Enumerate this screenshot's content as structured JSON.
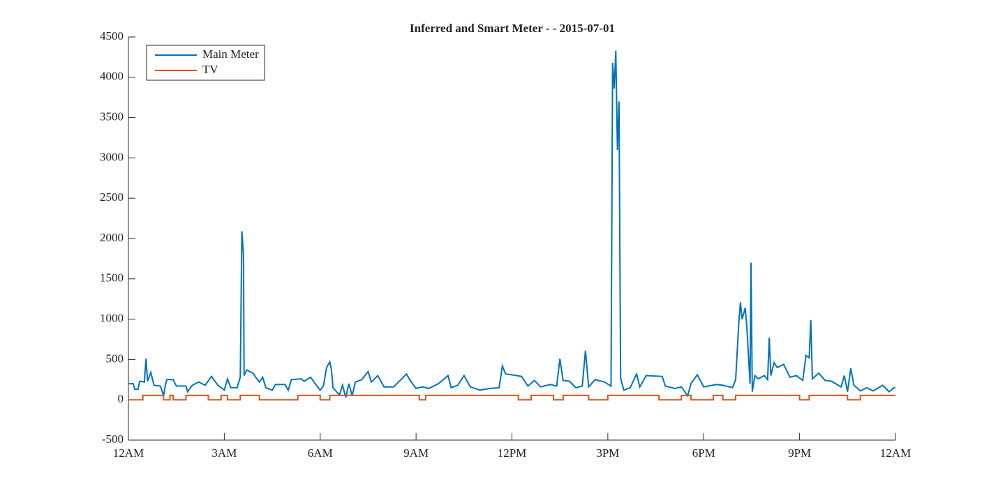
{
  "chart_data": {
    "type": "line",
    "title": "Inferred and Smart Meter -  - 2015-07-01",
    "series": [
      {
        "name": "Main Meter",
        "color": "#0072bd",
        "x": [
          0,
          0.15,
          0.2,
          0.3,
          0.35,
          0.5,
          0.55,
          0.6,
          0.7,
          0.8,
          1.0,
          1.1,
          1.15,
          1.2,
          1.4,
          1.5,
          1.8,
          1.85,
          2.0,
          2.2,
          2.4,
          2.6,
          2.8,
          3.0,
          3.1,
          3.2,
          3.4,
          3.5,
          3.55,
          3.6,
          3.62,
          3.7,
          3.9,
          4.0,
          4.1,
          4.2,
          4.3,
          4.5,
          4.6,
          4.9,
          5.0,
          5.1,
          5.4,
          5.5,
          5.7,
          5.9,
          6.0,
          6.1,
          6.2,
          6.3,
          6.35,
          6.4,
          6.6,
          6.7,
          6.8,
          6.9,
          7.0,
          7.1,
          7.3,
          7.5,
          7.6,
          7.8,
          8.0,
          8.3,
          8.4,
          8.7,
          8.8,
          9.0,
          9.2,
          9.4,
          9.7,
          10.0,
          10.1,
          10.3,
          10.5,
          10.7,
          11.0,
          11.3,
          11.6,
          11.7,
          11.8,
          12.0,
          12.3,
          12.5,
          12.7,
          12.9,
          13.2,
          13.4,
          13.5,
          13.6,
          13.8,
          14.0,
          14.2,
          14.3,
          14.4,
          14.6,
          14.9,
          15.1,
          15.15,
          15.2,
          15.25,
          15.3,
          15.35,
          15.4,
          15.5,
          15.7,
          15.9,
          16.0,
          16.2,
          16.7,
          16.8,
          17.1,
          17.3,
          17.5,
          17.6,
          17.8,
          18.0,
          18.4,
          18.6,
          18.9,
          19.0,
          19.1,
          19.15,
          19.2,
          19.3,
          19.35,
          19.45,
          19.48,
          19.52,
          19.6,
          19.7,
          19.9,
          20.0,
          20.05,
          20.1,
          20.2,
          20.3,
          20.5,
          20.7,
          20.9,
          21.1,
          21.2,
          21.3,
          21.35,
          21.4,
          21.6,
          21.8,
          22.0,
          22.3,
          22.4,
          22.5,
          22.6,
          22.7,
          22.9,
          23.1,
          23.3,
          23.6,
          23.8,
          23.95,
          24
        ],
        "values": [
          200,
          200,
          130,
          130,
          230,
          220,
          510,
          230,
          340,
          180,
          170,
          50,
          170,
          250,
          250,
          170,
          170,
          100,
          180,
          220,
          180,
          290,
          180,
          120,
          260,
          150,
          150,
          280,
          2090,
          1800,
          300,
          370,
          330,
          270,
          220,
          280,
          150,
          120,
          190,
          190,
          120,
          250,
          260,
          230,
          280,
          170,
          120,
          170,
          400,
          470,
          380,
          150,
          60,
          180,
          30,
          200,
          50,
          220,
          250,
          350,
          220,
          300,
          160,
          160,
          200,
          320,
          250,
          140,
          160,
          140,
          200,
          300,
          150,
          180,
          300,
          160,
          120,
          140,
          150,
          420,
          320,
          310,
          290,
          170,
          240,
          160,
          190,
          170,
          510,
          240,
          230,
          150,
          170,
          610,
          160,
          250,
          220,
          170,
          4180,
          3860,
          4330,
          3100,
          3700,
          270,
          120,
          150,
          320,
          160,
          300,
          290,
          170,
          140,
          160,
          50,
          200,
          310,
          160,
          190,
          180,
          150,
          250,
          970,
          1210,
          1000,
          1140,
          900,
          200,
          1700,
          100,
          300,
          260,
          300,
          250,
          770,
          300,
          460,
          400,
          440,
          280,
          300,
          240,
          550,
          520,
          990,
          260,
          330,
          240,
          230,
          160,
          300,
          100,
          390,
          180,
          110,
          150,
          110,
          180,
          100,
          150,
          150
        ]
      },
      {
        "name": "TV",
        "color": "#d95319",
        "x": [
          0,
          0.45,
          0.45,
          1.1,
          1.1,
          1.3,
          1.3,
          1.4,
          1.4,
          1.8,
          1.8,
          2.5,
          2.5,
          2.9,
          2.9,
          3.1,
          3.1,
          3.5,
          3.5,
          4.1,
          4.1,
          5.3,
          5.3,
          6.0,
          6.0,
          6.3,
          6.3,
          9.1,
          9.1,
          9.3,
          9.3,
          12.2,
          12.2,
          12.6,
          12.6,
          13.3,
          13.3,
          13.6,
          13.6,
          14.4,
          14.4,
          15.0,
          15.0,
          16.6,
          16.6,
          17.3,
          17.3,
          17.6,
          17.6,
          18.3,
          18.3,
          18.6,
          18.6,
          19.0,
          19.0,
          21.0,
          21.0,
          21.3,
          21.3,
          22.5,
          22.5,
          22.9,
          22.9,
          24
        ],
        "values": [
          0,
          0,
          55,
          55,
          0,
          0,
          55,
          55,
          0,
          0,
          55,
          55,
          0,
          0,
          55,
          55,
          0,
          0,
          55,
          55,
          0,
          0,
          55,
          55,
          0,
          0,
          55,
          55,
          0,
          0,
          55,
          55,
          0,
          0,
          55,
          55,
          0,
          0,
          55,
          55,
          0,
          0,
          55,
          55,
          0,
          0,
          55,
          55,
          0,
          0,
          55,
          55,
          0,
          0,
          55,
          55,
          0,
          0,
          55,
          55,
          0,
          0,
          55,
          55
        ]
      }
    ],
    "xlim": [
      0,
      24
    ],
    "xticks": [
      {
        "value": 0,
        "label": "12AM"
      },
      {
        "value": 3,
        "label": "3AM"
      },
      {
        "value": 6,
        "label": "6AM"
      },
      {
        "value": 9,
        "label": "9AM"
      },
      {
        "value": 12,
        "label": "12PM"
      },
      {
        "value": 15,
        "label": "3PM"
      },
      {
        "value": 18,
        "label": "6PM"
      },
      {
        "value": 21,
        "label": "9PM"
      },
      {
        "value": 24,
        "label": "12AM"
      }
    ],
    "ylim": [
      -500,
      4500
    ],
    "yticks": [
      -500,
      0,
      500,
      1000,
      1500,
      2000,
      2500,
      3000,
      3500,
      4000,
      4500
    ],
    "legend": "upper-left"
  }
}
